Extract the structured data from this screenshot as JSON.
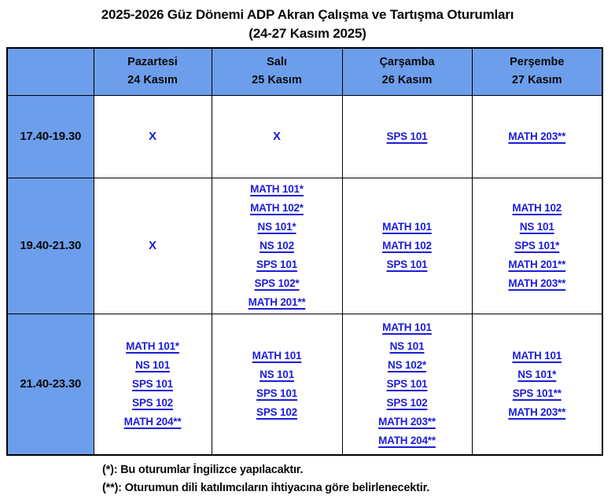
{
  "title": {
    "line1": "2025-2026 Güz Dönemi ADP Akran Çalışma ve Tartışma Oturumları",
    "line2": "(24-27 Kasım 2025)"
  },
  "colors": {
    "header_fill": "#6D9EEB",
    "link_blue": "#1C1CD9",
    "border": "#000000"
  },
  "table": {
    "columns": [
      {
        "day": "Pazartesi",
        "date": "24 Kasım"
      },
      {
        "day": "Salı",
        "date": "25 Kasım"
      },
      {
        "day": "Çarşamba",
        "date": "26 Kasım"
      },
      {
        "day": "Perşembe",
        "date": "27 Kasım"
      }
    ],
    "rows": [
      {
        "time": "17.40-19.30",
        "cells": [
          [
            {
              "text": "X",
              "link": false
            }
          ],
          [
            {
              "text": "X",
              "link": false
            }
          ],
          [
            {
              "text": "SPS 101",
              "link": true
            }
          ],
          [
            {
              "text": "MATH 203**",
              "link": true
            }
          ]
        ]
      },
      {
        "time": "19.40-21.30",
        "cells": [
          [
            {
              "text": "X",
              "link": false
            }
          ],
          [
            {
              "text": "MATH 101*",
              "link": true
            },
            {
              "text": "MATH 102*",
              "link": true
            },
            {
              "text": "NS 101*",
              "link": true
            },
            {
              "text": "NS 102",
              "link": true
            },
            {
              "text": "SPS 101",
              "link": true
            },
            {
              "text": "SPS 102*",
              "link": true
            },
            {
              "text": "MATH 201**",
              "link": true
            }
          ],
          [
            {
              "text": "MATH 101",
              "link": true
            },
            {
              "text": "MATH 102",
              "link": true
            },
            {
              "text": "SPS 101",
              "link": true
            }
          ],
          [
            {
              "text": "MATH 102",
              "link": true
            },
            {
              "text": "NS 101",
              "link": true
            },
            {
              "text": "SPS 101*",
              "link": true
            },
            {
              "text": "MATH 201**",
              "link": true
            },
            {
              "text": "MATH 203**",
              "link": true
            }
          ]
        ]
      },
      {
        "time": "21.40-23.30",
        "cells": [
          [
            {
              "text": "MATH 101*",
              "link": true
            },
            {
              "text": "NS 101",
              "link": true
            },
            {
              "text": "SPS 101",
              "link": true
            },
            {
              "text": "SPS 102",
              "link": true
            },
            {
              "text": "MATH 204**",
              "link": true
            }
          ],
          [
            {
              "text": "MATH 101",
              "link": true
            },
            {
              "text": "NS 101",
              "link": true
            },
            {
              "text": "SPS 101",
              "link": true
            },
            {
              "text": "SPS 102",
              "link": true
            }
          ],
          [
            {
              "text": "MATH 101",
              "link": true
            },
            {
              "text": "NS 101",
              "link": true
            },
            {
              "text": "NS 102*",
              "link": true
            },
            {
              "text": "SPS 101",
              "link": true
            },
            {
              "text": "SPS 102",
              "link": true
            },
            {
              "text": "MATH 203**",
              "link": true
            },
            {
              "text": "MATH 204**",
              "link": true
            }
          ],
          [
            {
              "text": "MATH 101",
              "link": true
            },
            {
              "text": "NS 101*",
              "link": true
            },
            {
              "text": "SPS 101**",
              "link": true
            },
            {
              "text": "MATH 203**",
              "link": true
            }
          ]
        ]
      }
    ]
  },
  "footnotes": [
    "(*): Bu oturumlar İngilizce yapılacaktır.",
    "(**): Oturumun dili katılımcıların ihtiyacına göre belirlenecektir."
  ]
}
